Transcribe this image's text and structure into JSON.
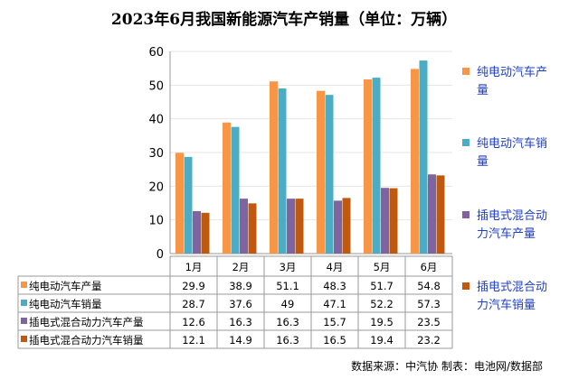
{
  "chart_data": {
    "type": "bar",
    "title": "2023年6月我国新能源汽车产销量（单位：万辆）",
    "categories": [
      "1月",
      "2月",
      "3月",
      "4月",
      "5月",
      "6月"
    ],
    "ylim": [
      0,
      60
    ],
    "yticks": [
      0,
      10,
      20,
      30,
      40,
      50,
      60
    ],
    "grid": true,
    "legend_placement": "right",
    "series": [
      {
        "name": "纯电动汽车产量",
        "legend_lines": [
          "纯电动汽车产",
          "量"
        ],
        "color": "#F79646",
        "values": [
          29.9,
          38.9,
          51.1,
          48.3,
          51.7,
          54.8
        ]
      },
      {
        "name": "纯电动汽车销量",
        "legend_lines": [
          "纯电动汽车销",
          "量"
        ],
        "color": "#4BACC6",
        "values": [
          28.7,
          37.6,
          49,
          47.1,
          52.2,
          57.3
        ]
      },
      {
        "name": "插电式混合动力汽车产量",
        "legend_lines": [
          "插电式混合动",
          "力汽车产量"
        ],
        "color": "#8064A2",
        "values": [
          12.6,
          16.3,
          16.3,
          15.7,
          19.5,
          23.5
        ]
      },
      {
        "name": "插电式混合动力汽车销量",
        "legend_lines": [
          "插电式混合动",
          "力汽车销量"
        ],
        "color": "#C0590E",
        "values": [
          12.1,
          14.9,
          16.3,
          16.5,
          19.4,
          23.2
        ]
      }
    ],
    "data_table": true
  },
  "footer": "数据来源：中汽协  制表：电池网/数据部"
}
